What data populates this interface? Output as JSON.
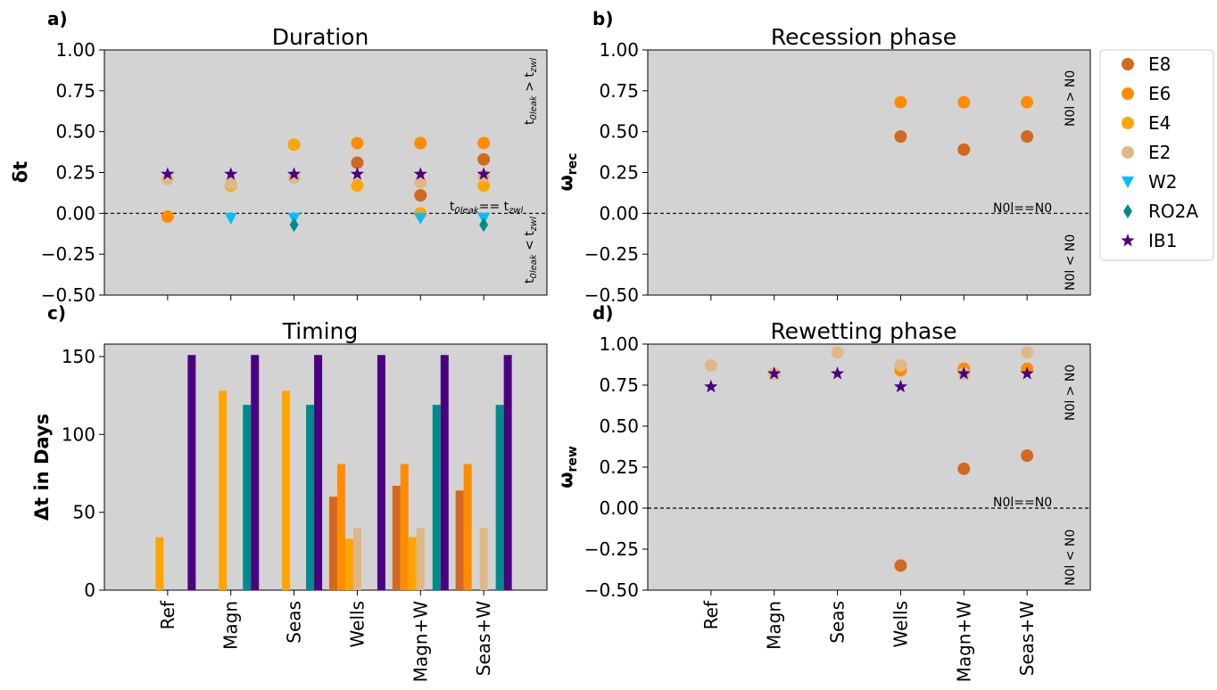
{
  "panels": {
    "a": {
      "letter": "a)",
      "title": "Duration",
      "ylabel": "δt",
      "ann_top": "t0leak > tzwl",
      "ann_mid": "t0leak== tzwl",
      "ann_bot": "t0leak < tzwl"
    },
    "b": {
      "letter": "b)",
      "title": "Recession phase",
      "ylabel": "ωrec",
      "ann_top": "N0l > N0",
      "ann_mid": "N0l==N0",
      "ann_bot": "N0l < N0"
    },
    "c": {
      "letter": "c)",
      "title": "Timing",
      "ylabel": "Δt in Days"
    },
    "d": {
      "letter": "d)",
      "title": "Rewetting phase",
      "ylabel": "ωrew",
      "ann_top": "N0l > N0",
      "ann_mid": "N0l==N0",
      "ann_bot": "N0l < N0"
    }
  },
  "legend": [
    {
      "label": "E8",
      "color": "#d2691e",
      "marker": "circle"
    },
    {
      "label": "E6",
      "color": "#ff8c00",
      "marker": "circle"
    },
    {
      "label": "E4",
      "color": "#ffa500",
      "marker": "circle"
    },
    {
      "label": "E2",
      "color": "#deb887",
      "marker": "circle"
    },
    {
      "label": "W2",
      "color": "#00bfff",
      "marker": "triangle-down"
    },
    {
      "label": "RO2A",
      "color": "#008b8b",
      "marker": "diamond"
    },
    {
      "label": "IB1",
      "color": "#4b0082",
      "marker": "star"
    }
  ],
  "chart_data": [
    {
      "panel": "a",
      "type": "scatter",
      "title": "Duration",
      "ylabel": "δt",
      "categories": [
        "Ref",
        "Magn",
        "Seas",
        "Wells",
        "Magn+W",
        "Seas+W"
      ],
      "ylim": [
        -0.5,
        1.0
      ],
      "yticks": [
        "1.00",
        "0.75",
        "0.50",
        "0.25",
        "0.00",
        "−0.25",
        "−0.50"
      ],
      "reference_line": 0,
      "series": [
        {
          "name": "E8",
          "values": [
            null,
            null,
            null,
            0.31,
            0.11,
            0.33
          ]
        },
        {
          "name": "E6",
          "values": [
            -0.02,
            null,
            null,
            0.43,
            0.43,
            0.43
          ]
        },
        {
          "name": "E4",
          "values": [
            null,
            0.17,
            0.42,
            0.17,
            0.0,
            0.17
          ]
        },
        {
          "name": "E2",
          "values": [
            0.21,
            0.18,
            0.22,
            null,
            0.19,
            0.23
          ]
        },
        {
          "name": "W2",
          "values": [
            null,
            -0.03,
            -0.03,
            null,
            -0.03,
            -0.03
          ]
        },
        {
          "name": "RO2A",
          "values": [
            null,
            null,
            -0.07,
            null,
            null,
            -0.07
          ]
        },
        {
          "name": "IB1",
          "values": [
            0.24,
            0.24,
            0.24,
            0.24,
            0.24,
            0.24
          ]
        }
      ]
    },
    {
      "panel": "b",
      "type": "scatter",
      "title": "Recession phase",
      "ylabel": "ωrec",
      "categories": [
        "Ref",
        "Magn",
        "Seas",
        "Wells",
        "Magn+W",
        "Seas+W"
      ],
      "ylim": [
        -0.5,
        1.0
      ],
      "yticks": [
        "1.00",
        "0.75",
        "0.50",
        "0.25",
        "0.00",
        "−0.25",
        "−0.50"
      ],
      "reference_line": 0,
      "series": [
        {
          "name": "E8",
          "values": [
            null,
            null,
            null,
            0.47,
            0.39,
            0.47
          ]
        },
        {
          "name": "E6",
          "values": [
            null,
            null,
            null,
            0.68,
            0.68,
            0.68
          ]
        }
      ]
    },
    {
      "panel": "c",
      "type": "bar",
      "title": "Timing",
      "ylabel": "Δt in Days",
      "categories": [
        "Ref",
        "Magn",
        "Seas",
        "Wells",
        "Magn+W",
        "Seas+W"
      ],
      "ylim": [
        0,
        158
      ],
      "yticks": [
        "150",
        "100",
        "50",
        "0"
      ],
      "series": [
        {
          "name": "E8",
          "values": [
            0,
            0,
            0,
            60,
            67,
            64
          ]
        },
        {
          "name": "E6",
          "values": [
            0,
            0,
            0,
            81,
            81,
            81
          ]
        },
        {
          "name": "E4",
          "values": [
            34,
            128,
            128,
            33,
            34,
            0
          ]
        },
        {
          "name": "E2",
          "values": [
            0,
            0,
            0,
            40,
            40,
            40
          ]
        },
        {
          "name": "W2",
          "values": [
            0,
            0,
            0,
            0,
            0,
            0
          ]
        },
        {
          "name": "RO2A",
          "values": [
            0,
            119,
            119,
            0,
            119,
            119
          ]
        },
        {
          "name": "IB1",
          "values": [
            151,
            151,
            151,
            151,
            151,
            151
          ]
        }
      ]
    },
    {
      "panel": "d",
      "type": "scatter",
      "title": "Rewetting phase",
      "ylabel": "ωrew",
      "categories": [
        "Ref",
        "Magn",
        "Seas",
        "Wells",
        "Magn+W",
        "Seas+W"
      ],
      "ylim": [
        -0.5,
        1.0
      ],
      "yticks": [
        "1.00",
        "0.75",
        "0.50",
        "0.25",
        "0.00",
        "−0.25",
        "−0.50"
      ],
      "reference_line": 0,
      "series": [
        {
          "name": "E8",
          "values": [
            null,
            null,
            null,
            -0.35,
            0.24,
            0.32
          ]
        },
        {
          "name": "E6",
          "values": [
            null,
            null,
            null,
            0.84,
            0.85,
            0.85
          ]
        },
        {
          "name": "E4",
          "values": [
            null,
            0.82,
            null,
            null,
            null,
            null
          ]
        },
        {
          "name": "E2",
          "values": [
            0.87,
            0.82,
            0.95,
            0.87,
            0.82,
            0.95
          ]
        },
        {
          "name": "IB1",
          "values": [
            0.74,
            0.82,
            0.82,
            0.74,
            0.82,
            0.82
          ]
        }
      ]
    }
  ]
}
